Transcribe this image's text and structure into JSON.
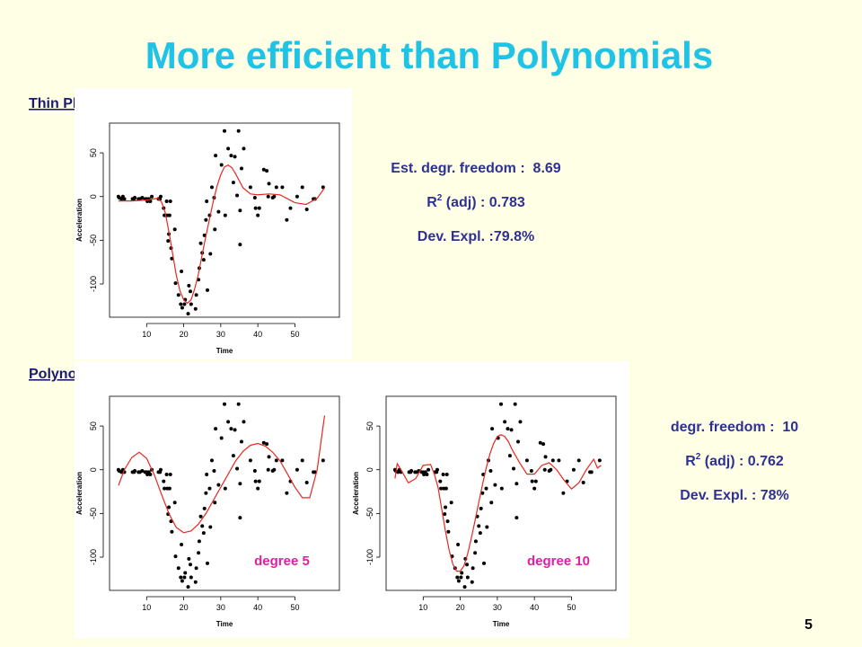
{
  "title": "More efficient than Polynomials",
  "spline_heading": "Thin Plate Regression Splines",
  "poly_heading": "Polynomials",
  "spline_stats": {
    "freedom": "Est. degr. freedom :  8.69",
    "r2": "R",
    "r2_sup": "2",
    "r2_rest": " (adj) : 0.783",
    "deviance": "Dev. Expl. :79.8%"
  },
  "poly_stats": {
    "freedom": "degr. freedom :  10",
    "r2": "R",
    "r2_sup": "2",
    "r2_rest": " (adj) : 0.762",
    "deviance": "Dev. Expl. : 78%"
  },
  "page_number": "5",
  "chart_data": [
    {
      "type": "scatter",
      "xlabel": "Time",
      "ylabel": "Acceleration",
      "xlim": [
        0,
        62
      ],
      "ylim": [
        -138,
        84
      ],
      "xticks": [
        10,
        20,
        30,
        40,
        50
      ],
      "yticks": [
        -100,
        -50,
        0,
        50
      ],
      "series": [
        {
          "type": "scatter",
          "color": "#000000",
          "x": [
            2.4,
            2.6,
            3.2,
            3.6,
            4,
            6.2,
            6.6,
            6.8,
            7.8,
            8.2,
            8.8,
            9.6,
            10,
            10.2,
            10.6,
            11,
            11.4,
            13.2,
            13.6,
            13.8,
            14.6,
            14.8,
            15.4,
            15.6,
            15.8,
            16,
            16.2,
            16.4,
            16.6,
            16.8,
            17.6,
            17.8,
            18.6,
            19.2,
            19.4,
            19.6,
            20.2,
            20.4,
            21.2,
            21.4,
            21.8,
            22,
            23.2,
            23.4,
            24,
            24.2,
            24.6,
            25,
            25.4,
            25.6,
            26,
            26.2,
            26.4,
            27,
            27.2,
            27.6,
            28.2,
            28.4,
            28.6,
            29.4,
            30.2,
            31,
            31.2,
            32,
            32.8,
            33.4,
            33.8,
            34.4,
            34.8,
            35.2,
            35.2,
            35.6,
            36.2,
            38,
            39.2,
            39.4,
            40,
            40.4,
            41.6,
            42.4,
            42.8,
            43,
            44,
            44.4,
            45,
            46.6,
            47.8,
            48.8,
            50.6,
            52,
            53.2,
            55,
            55.4,
            57.6
          ],
          "values": [
            0,
            -1.3,
            -2.7,
            0,
            -2.7,
            -2.7,
            -2.7,
            -1.3,
            -2.7,
            -2.7,
            -1.3,
            -2.7,
            -2.7,
            -5.4,
            -2.7,
            -5.4,
            0,
            -2.7,
            -2.7,
            0,
            -13.3,
            -21.5,
            -5.4,
            -21.5,
            -50.8,
            -42.9,
            -21.5,
            -5.4,
            -59,
            -71,
            -37.5,
            -99.1,
            -112.5,
            -123.1,
            -85.6,
            -127.2,
            -123.1,
            -117.9,
            -134,
            -101.9,
            -108.4,
            -123.1,
            -128.5,
            -112.5,
            -95.1,
            -81.8,
            -53.5,
            -64.4,
            -72.3,
            -44.3,
            -26.8,
            -5.4,
            -107.1,
            -21.5,
            -65.6,
            10.7,
            -1.3,
            -37.5,
            46.9,
            -17.4,
            36.2,
            75,
            -21.5,
            54.9,
            46.9,
            16,
            45.6,
            1.3,
            75,
            -16,
            -54.9,
            32.1,
            54.9,
            10.7,
            -1.3,
            -13.3,
            -21.5,
            -13.3,
            30.8,
            29.4,
            0,
            14.7,
            -1.3,
            0,
            10.7,
            10.7,
            -26.8,
            -13.3,
            0,
            10.7,
            -14.7,
            -2.7,
            -2.7,
            10.7
          ]
        },
        {
          "type": "line",
          "color": "#e8281e",
          "x": [
            2.4,
            6,
            10,
            13,
            14,
            15,
            16,
            17,
            18,
            19,
            20,
            21,
            22,
            23,
            24,
            25,
            26,
            27,
            28,
            29,
            30,
            31,
            32,
            33,
            34,
            35,
            36,
            38,
            40,
            43,
            46,
            50,
            53,
            56,
            58
          ],
          "values": [
            -5,
            -5,
            -4,
            -2,
            -6,
            -18,
            -40,
            -65,
            -90,
            -108,
            -118,
            -122,
            -118,
            -105,
            -88,
            -66,
            -45,
            -25,
            -5,
            12,
            25,
            34,
            36,
            33,
            26,
            18,
            10,
            3,
            2,
            3,
            2,
            -7,
            -9,
            -2,
            10
          ]
        }
      ]
    },
    {
      "type": "scatter",
      "xlabel": "Time",
      "ylabel": "Acceleration",
      "xlim": [
        0,
        62
      ],
      "ylim": [
        -138,
        84
      ],
      "xticks": [
        10,
        20,
        30,
        40,
        50
      ],
      "yticks": [
        -100,
        -50,
        0,
        50
      ],
      "annotation": "degree 5",
      "series": [
        {
          "type": "scatter",
          "color": "#000000",
          "x": [
            2.4,
            2.6,
            3.2,
            3.6,
            4,
            6.2,
            6.6,
            6.8,
            7.8,
            8.2,
            8.8,
            9.6,
            10,
            10.2,
            10.6,
            11,
            11.4,
            13.2,
            13.6,
            13.8,
            14.6,
            14.8,
            15.4,
            15.6,
            15.8,
            16,
            16.2,
            16.4,
            16.6,
            16.8,
            17.6,
            17.8,
            18.6,
            19.2,
            19.4,
            19.6,
            20.2,
            20.4,
            21.2,
            21.4,
            21.8,
            22,
            23.2,
            23.4,
            24,
            24.2,
            24.6,
            25,
            25.4,
            25.6,
            26,
            26.2,
            26.4,
            27,
            27.2,
            27.6,
            28.2,
            28.4,
            28.6,
            29.4,
            30.2,
            31,
            31.2,
            32,
            32.8,
            33.4,
            33.8,
            34.4,
            34.8,
            35.2,
            35.2,
            35.6,
            36.2,
            38,
            39.2,
            39.4,
            40,
            40.4,
            41.6,
            42.4,
            42.8,
            43,
            44,
            44.4,
            45,
            46.6,
            47.8,
            48.8,
            50.6,
            52,
            53.2,
            55,
            55.4,
            57.6
          ],
          "values": [
            0,
            -1.3,
            -2.7,
            0,
            -2.7,
            -2.7,
            -2.7,
            -1.3,
            -2.7,
            -2.7,
            -1.3,
            -2.7,
            -2.7,
            -5.4,
            -2.7,
            -5.4,
            0,
            -2.7,
            -2.7,
            0,
            -13.3,
            -21.5,
            -5.4,
            -21.5,
            -50.8,
            -42.9,
            -21.5,
            -5.4,
            -59,
            -71,
            -37.5,
            -99.1,
            -112.5,
            -123.1,
            -85.6,
            -127.2,
            -123.1,
            -117.9,
            -134,
            -101.9,
            -108.4,
            -123.1,
            -128.5,
            -112.5,
            -95.1,
            -81.8,
            -53.5,
            -64.4,
            -72.3,
            -44.3,
            -26.8,
            -5.4,
            -107.1,
            -21.5,
            -65.6,
            10.7,
            -1.3,
            -37.5,
            46.9,
            -17.4,
            36.2,
            75,
            -21.5,
            54.9,
            46.9,
            16,
            45.6,
            1.3,
            75,
            -16,
            -54.9,
            32.1,
            54.9,
            10.7,
            -1.3,
            -13.3,
            -21.5,
            -13.3,
            30.8,
            29.4,
            0,
            14.7,
            -1.3,
            0,
            10.7,
            10.7,
            -26.8,
            -13.3,
            0,
            10.7,
            -14.7,
            -2.7,
            -2.7,
            10.7
          ]
        },
        {
          "type": "line",
          "color": "#e8281e",
          "x": [
            2.4,
            4,
            6,
            8,
            10,
            12,
            14,
            16,
            18,
            20,
            22,
            24,
            26,
            28,
            30,
            32,
            34,
            36,
            38,
            40,
            42,
            44,
            46,
            48,
            50,
            52,
            54,
            56,
            58
          ],
          "values": [
            -18,
            0,
            14,
            20,
            13,
            -5,
            -28,
            -50,
            -66,
            -72,
            -70,
            -62,
            -50,
            -35,
            -20,
            -5,
            10,
            21,
            28,
            30,
            27,
            20,
            10,
            -5,
            -20,
            -32,
            -32,
            0,
            62
          ]
        }
      ]
    },
    {
      "type": "scatter",
      "xlabel": "Time",
      "ylabel": "Acceleration",
      "xlim": [
        0,
        62
      ],
      "ylim": [
        -138,
        84
      ],
      "xticks": [
        10,
        20,
        30,
        40,
        50
      ],
      "yticks": [
        -100,
        -50,
        0,
        50
      ],
      "annotation": "degree 10",
      "series": [
        {
          "type": "scatter",
          "color": "#000000",
          "x": [
            2.4,
            2.6,
            3.2,
            3.6,
            4,
            6.2,
            6.6,
            6.8,
            7.8,
            8.2,
            8.8,
            9.6,
            10,
            10.2,
            10.6,
            11,
            11.4,
            13.2,
            13.6,
            13.8,
            14.6,
            14.8,
            15.4,
            15.6,
            15.8,
            16,
            16.2,
            16.4,
            16.6,
            16.8,
            17.6,
            17.8,
            18.6,
            19.2,
            19.4,
            19.6,
            20.2,
            20.4,
            21.2,
            21.4,
            21.8,
            22,
            23.2,
            23.4,
            24,
            24.2,
            24.6,
            25,
            25.4,
            25.6,
            26,
            26.2,
            26.4,
            27,
            27.2,
            27.6,
            28.2,
            28.4,
            28.6,
            29.4,
            30.2,
            31,
            31.2,
            32,
            32.8,
            33.4,
            33.8,
            34.4,
            34.8,
            35.2,
            35.2,
            35.6,
            36.2,
            38,
            39.2,
            39.4,
            40,
            40.4,
            41.6,
            42.4,
            42.8,
            43,
            44,
            44.4,
            45,
            46.6,
            47.8,
            48.8,
            50.6,
            52,
            53.2,
            55,
            55.4,
            57.6
          ],
          "values": [
            0,
            -1.3,
            -2.7,
            0,
            -2.7,
            -2.7,
            -2.7,
            -1.3,
            -2.7,
            -2.7,
            -1.3,
            -2.7,
            -2.7,
            -5.4,
            -2.7,
            -5.4,
            0,
            -2.7,
            -2.7,
            0,
            -13.3,
            -21.5,
            -5.4,
            -21.5,
            -50.8,
            -42.9,
            -21.5,
            -5.4,
            -59,
            -71,
            -37.5,
            -99.1,
            -112.5,
            -123.1,
            -85.6,
            -127.2,
            -123.1,
            -117.9,
            -134,
            -101.9,
            -108.4,
            -123.1,
            -128.5,
            -112.5,
            -95.1,
            -81.8,
            -53.5,
            -64.4,
            -72.3,
            -44.3,
            -26.8,
            -5.4,
            -107.1,
            -21.5,
            -65.6,
            10.7,
            -1.3,
            -37.5,
            46.9,
            -17.4,
            36.2,
            75,
            -21.5,
            54.9,
            46.9,
            16,
            45.6,
            1.3,
            75,
            -16,
            -54.9,
            32.1,
            54.9,
            10.7,
            -1.3,
            -13.3,
            -21.5,
            -13.3,
            30.8,
            29.4,
            0,
            14.7,
            -1.3,
            0,
            10.7,
            10.7,
            -26.8,
            -13.3,
            0,
            10.7,
            -14.7,
            -2.7,
            -2.7,
            10.7
          ]
        },
        {
          "type": "line",
          "color": "#e8281e",
          "x": [
            2.4,
            3,
            4,
            6,
            8,
            10,
            12,
            13,
            14,
            15,
            16,
            17,
            18,
            19,
            20,
            21,
            22,
            23,
            24,
            25,
            26,
            27,
            28,
            29,
            30,
            31,
            32,
            33,
            34,
            36,
            38,
            40,
            42,
            44,
            46,
            48,
            50,
            52,
            54,
            56,
            57,
            58
          ],
          "values": [
            -10,
            7,
            0,
            -15,
            -10,
            5,
            6,
            -5,
            -20,
            -45,
            -70,
            -92,
            -108,
            -116,
            -116,
            -110,
            -96,
            -78,
            -58,
            -37,
            -17,
            2,
            18,
            30,
            38,
            40,
            38,
            32,
            23,
            8,
            -5,
            -5,
            5,
            8,
            0,
            -12,
            -22,
            -15,
            0,
            12,
            2,
            5
          ]
        }
      ]
    }
  ]
}
